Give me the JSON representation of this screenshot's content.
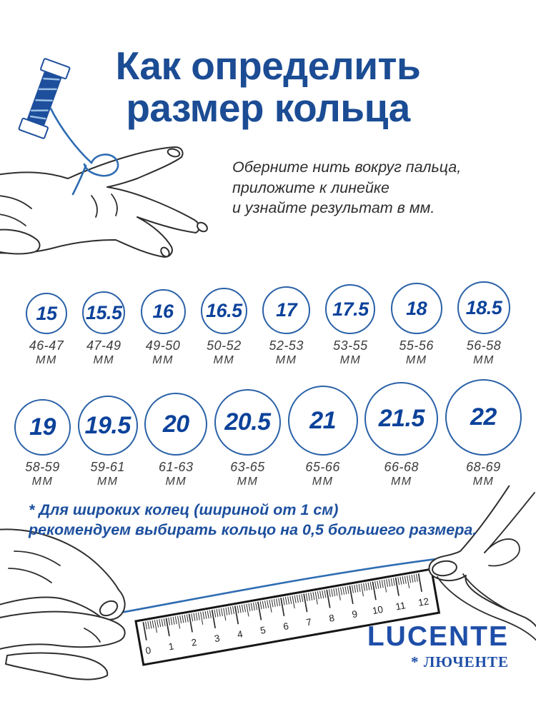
{
  "title": {
    "line1": "Как определить",
    "line2": "размер кольца"
  },
  "instruction": {
    "line1": "Оберните нить вокруг пальца,",
    "line2": "приложите к линейке",
    "line3": "и узнайте результат в мм."
  },
  "ring_sizes": {
    "row1": [
      {
        "size": "15",
        "range": "46-47",
        "unit": "ММ"
      },
      {
        "size": "15.5",
        "range": "47-49",
        "unit": "ММ"
      },
      {
        "size": "16",
        "range": "49-50",
        "unit": "ММ"
      },
      {
        "size": "16.5",
        "range": "50-52",
        "unit": "ММ"
      },
      {
        "size": "17",
        "range": "52-53",
        "unit": "ММ"
      },
      {
        "size": "17.5",
        "range": "53-55",
        "unit": "ММ"
      },
      {
        "size": "18",
        "range": "55-56",
        "unit": "ММ"
      },
      {
        "size": "18.5",
        "range": "56-58",
        "unit": "ММ"
      }
    ],
    "row2": [
      {
        "size": "19",
        "range": "58-59",
        "unit": "ММ"
      },
      {
        "size": "19.5",
        "range": "59-61",
        "unit": "ММ"
      },
      {
        "size": "20",
        "range": "61-63",
        "unit": "ММ"
      },
      {
        "size": "20.5",
        "range": "63-65",
        "unit": "ММ"
      },
      {
        "size": "21",
        "range": "65-66",
        "unit": "ММ"
      },
      {
        "size": "21.5",
        "range": "66-68",
        "unit": "ММ"
      },
      {
        "size": "22",
        "range": "68-69",
        "unit": "ММ"
      }
    ]
  },
  "note": {
    "line1": "* Для широких колец (шириной от 1 см)",
    "line2": "рекомендуем выбирать кольцо на 0,5 большего размера."
  },
  "ruler": {
    "numbers": [
      "0",
      "1",
      "2",
      "3",
      "4",
      "5",
      "6",
      "7",
      "8",
      "9",
      "10",
      "11",
      "12"
    ]
  },
  "brand": {
    "logo": "LUCENTE",
    "sublabel": "* ЛЮЧЕНТЕ"
  },
  "icons": {
    "spool": "thread-spool-icon",
    "top_hand": "hand-with-thread-icon",
    "left_hand": "left-hand-icon",
    "right_hand": "right-hand-icon",
    "ruler": "ruler-icon",
    "thread": "thread-line"
  },
  "colors": {
    "title_navy": "#1b4c94",
    "circle_stroke": "#2a61a7",
    "number_blue": "#0c429a",
    "text_gray": "#3c3c3c",
    "note_blue": "#1d4f9e",
    "thread_blue": "#2e6cb2",
    "logo_blue": "#1e4ea8"
  }
}
